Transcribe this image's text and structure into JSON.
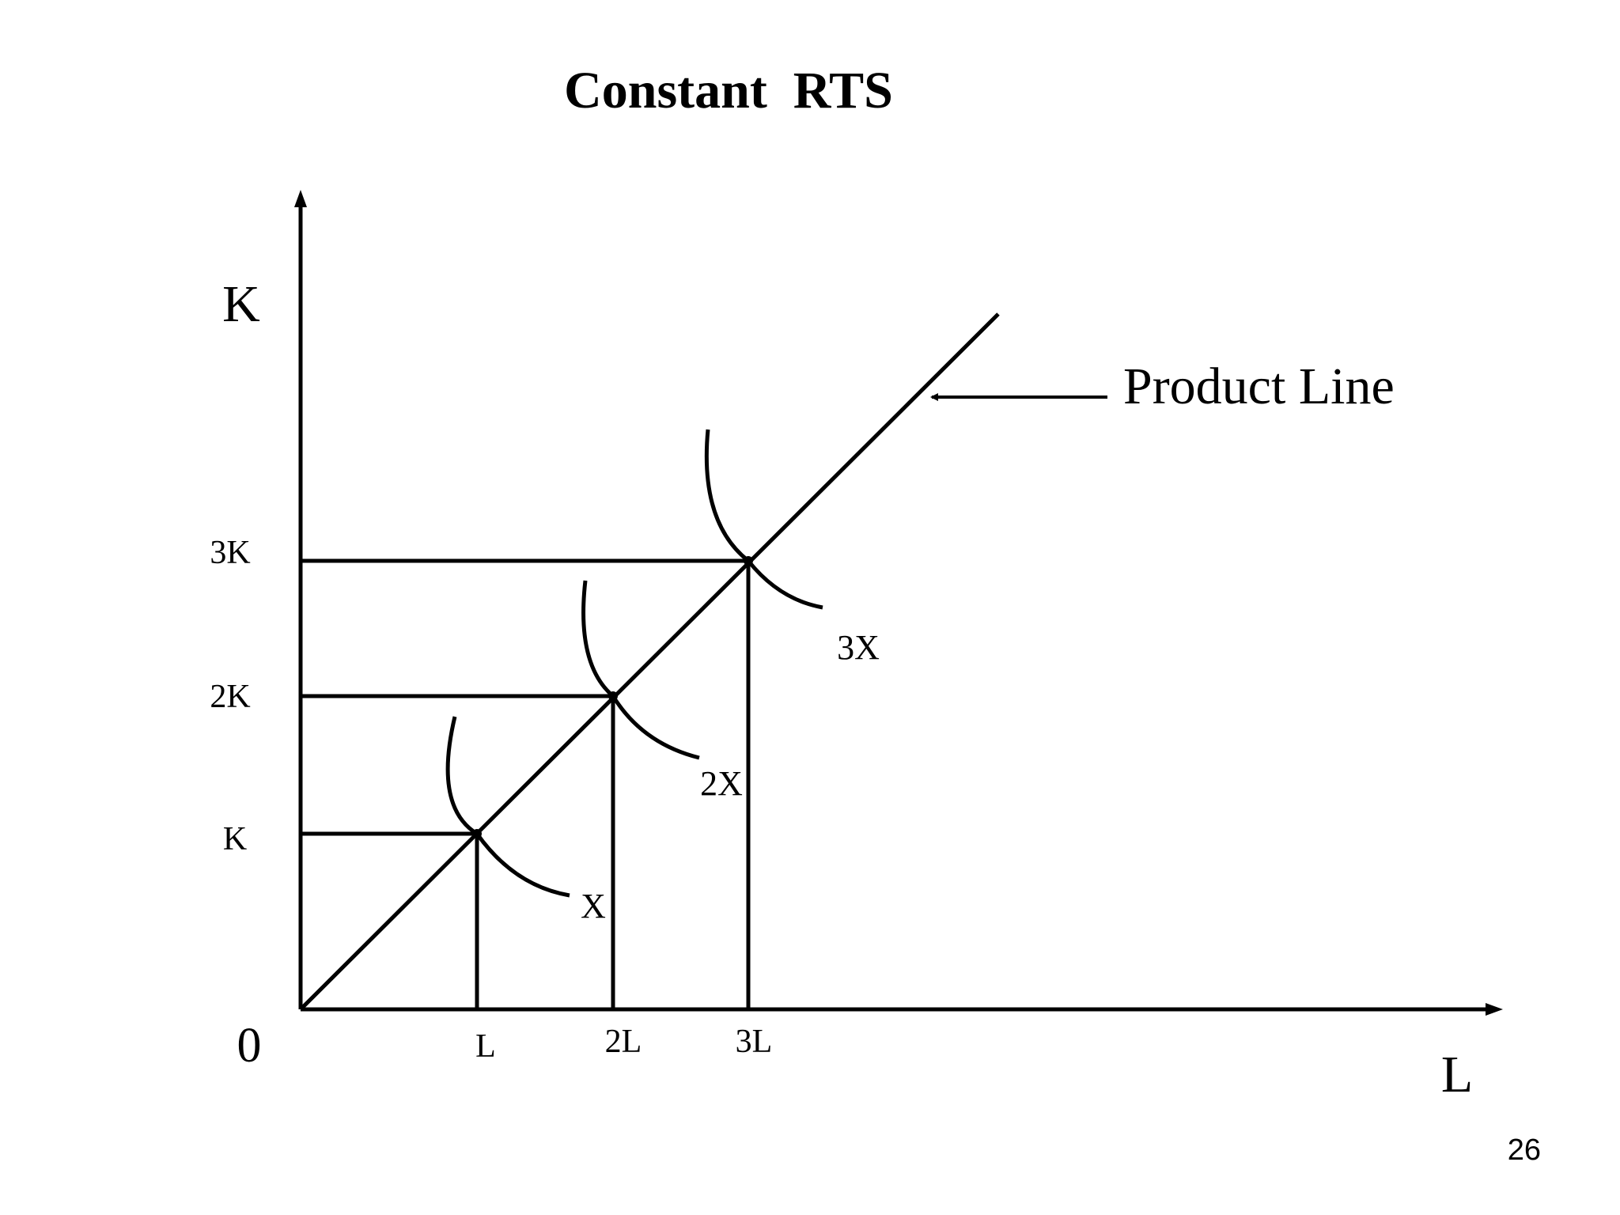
{
  "title": "Constant  RTS",
  "axes": {
    "y_label": "K",
    "x_label": "L",
    "origin_label": "0"
  },
  "y_ticks": [
    "K",
    "2K",
    "3K"
  ],
  "x_ticks": [
    "L",
    "2L",
    "3L"
  ],
  "isoquants": [
    "X",
    "2X",
    "3X"
  ],
  "product_line_label": "Product Line",
  "page_number": "26",
  "colors": {
    "ink": "#000000",
    "background": "#ffffff"
  }
}
